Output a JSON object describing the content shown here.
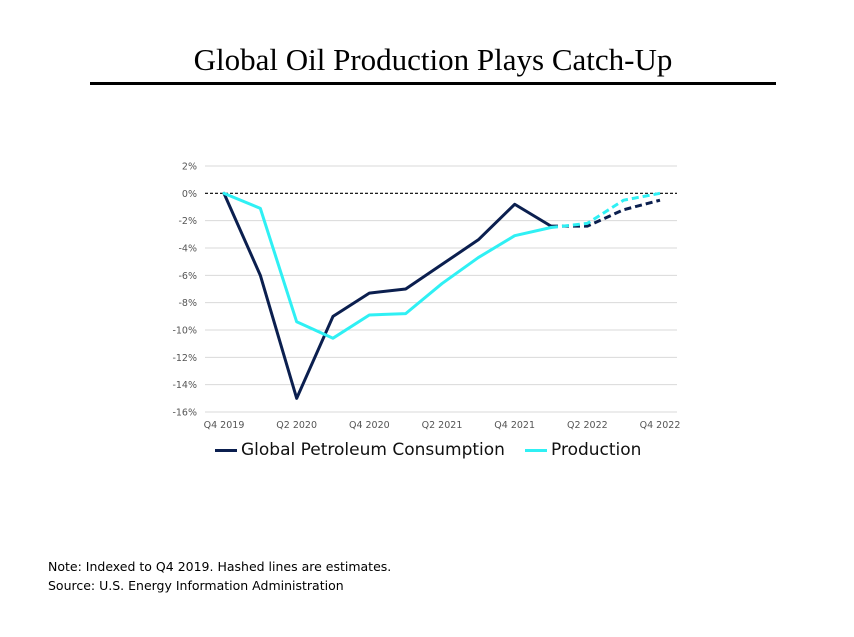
{
  "slide": {
    "title": "Global Oil Production Plays Catch-Up",
    "note": "Note: Indexed to Q4 2019. Hashed lines are estimates.",
    "source": "Source: U.S. Energy Information Administration"
  },
  "chart_data": {
    "type": "line",
    "title": "",
    "xlabel": "",
    "ylabel": "",
    "x": [
      "Q4 2019",
      "Q1 2020",
      "Q2 2020",
      "Q3 2020",
      "Q4 2020",
      "Q1 2021",
      "Q2 2021",
      "Q3 2021",
      "Q4 2021",
      "Q1 2022",
      "Q2 2022",
      "Q3 2022",
      "Q4 2022"
    ],
    "x_tick_labels": [
      "Q4 2019",
      "Q2 2020",
      "Q4 2020",
      "Q2 2021",
      "Q4 2021",
      "Q2 2022",
      "Q4 2022"
    ],
    "ylim": [
      -16,
      2
    ],
    "y_ticks": [
      2,
      0,
      -2,
      -4,
      -6,
      -8,
      -10,
      -12,
      -14,
      -16
    ],
    "y_tick_labels": [
      "2%",
      "0%",
      "-2%",
      "-4%",
      "-6%",
      "-8%",
      "-10%",
      "-12%",
      "-14%",
      "-16%"
    ],
    "grid": true,
    "reference_line": {
      "y": 0,
      "style": "dashed"
    },
    "estimate_from_index": 9,
    "series": [
      {
        "name": "Global Petroleum Consumption",
        "color": "#0b1f4f",
        "values": [
          0,
          -6,
          -15,
          -9,
          -7.3,
          -7,
          -5.2,
          -3.4,
          -0.8,
          -2.4,
          -2.4,
          -1.2,
          -0.5
        ]
      },
      {
        "name": "Production",
        "color": "#2ff0f4",
        "values": [
          0,
          -1.1,
          -9.4,
          -10.6,
          -8.9,
          -8.8,
          -6.6,
          -4.7,
          -3.1,
          -2.5,
          -2.2,
          -0.5,
          0
        ]
      }
    ],
    "legend_position": "bottom"
  }
}
